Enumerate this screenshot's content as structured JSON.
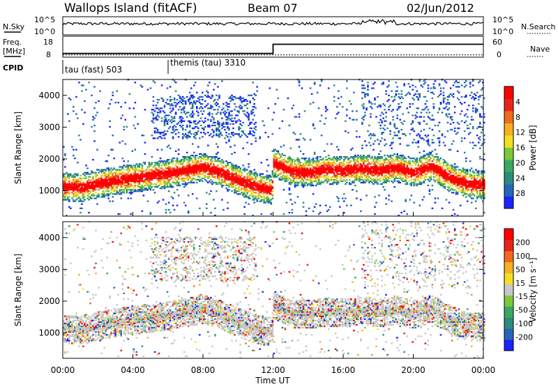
{
  "header": {
    "station": "Wallops Island (fitACF)",
    "beam": "Beam 07",
    "date": "02/Jun/2012"
  },
  "top_panels": {
    "nsky_label": "N.Sky",
    "nsearch_label": "N.Search",
    "noise_tick_high": "10^5",
    "noise_tick_low": "10^0",
    "freq_label": "Freq.",
    "freq_unit": "[MHz]",
    "freq_ticks": [
      "18",
      "8"
    ],
    "nave_label": "Nave",
    "nave_ticks": [
      "60",
      "0"
    ],
    "cpid_label": "CPID",
    "cpid_entries": [
      {
        "label": "tau (fast) 503",
        "start_hour": 0
      },
      {
        "label": "themis (tau) 3310",
        "start_hour": 6
      }
    ],
    "freq_series": {
      "hours": [
        0,
        12,
        12,
        24
      ],
      "mhz": [
        10,
        10,
        15,
        15
      ]
    },
    "nave_series": {
      "hours": [
        0,
        24
      ],
      "value": [
        7,
        7
      ]
    }
  },
  "chart_data": [
    {
      "type": "heatmap",
      "name": "power-panel",
      "ylabel": "Slant Range [km]",
      "ylim": [
        200,
        4500
      ],
      "y_ticks": [
        1000,
        2000,
        3000,
        4000
      ],
      "xlim": [
        0,
        24
      ],
      "colorbar": {
        "label": "Power [dB]",
        "ticks": [
          "4",
          "8",
          "12",
          "16",
          "20",
          "24",
          "28"
        ],
        "colors": [
          "#1a22ff",
          "#2466b8",
          "#2e8a7a",
          "#3aa860",
          "#7cc83c",
          "#f2e020",
          "#f7b020",
          "#f26a1c",
          "#e8241a",
          "#ff0000"
        ]
      },
      "main_band_km": {
        "hours": [
          0,
          1,
          2,
          3,
          4,
          5,
          6,
          7,
          8,
          9,
          10,
          11,
          11.9,
          12,
          13,
          14,
          15,
          16,
          17,
          18,
          19,
          20,
          21,
          22,
          23,
          24
        ],
        "km": [
          1100,
          1080,
          1200,
          1300,
          1380,
          1450,
          1520,
          1620,
          1720,
          1550,
          1300,
          1100,
          1000,
          1850,
          1600,
          1550,
          1650,
          1600,
          1680,
          1620,
          1700,
          1550,
          1750,
          1400,
          1200,
          1150
        ]
      }
    },
    {
      "type": "heatmap",
      "name": "velocity-panel",
      "ylabel": "Slant Range [km]",
      "ylim": [
        200,
        4500
      ],
      "y_ticks": [
        1000,
        2000,
        3000,
        4000
      ],
      "xlim": [
        0,
        24
      ],
      "xlabel": "Time UT",
      "x_ticks": [
        "00:00",
        "04:00",
        "08:00",
        "12:00",
        "16:00",
        "20:00",
        "00:00"
      ],
      "colorbar": {
        "label": "Velocity [m s⁻¹]",
        "ticks": [
          "200",
          "100",
          "50",
          "15",
          "-15",
          "-50",
          "-100",
          "-200"
        ],
        "colors": [
          "#1a22ff",
          "#2466b8",
          "#2e8a7a",
          "#3aa860",
          "#7cc83c",
          "#c8c8c8",
          "#f2e020",
          "#f7b020",
          "#f26a1c",
          "#e8241a",
          "#ff0000"
        ]
      }
    }
  ]
}
